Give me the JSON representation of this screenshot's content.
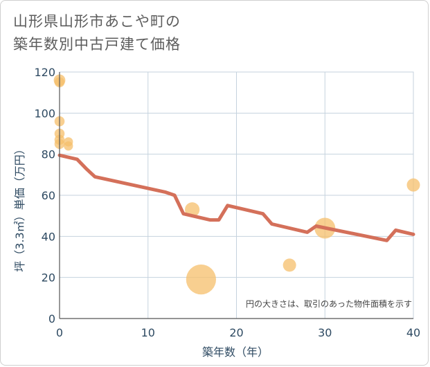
{
  "title_line1": "山形県山形市あこや町の",
  "title_line2": "築年数別中古戸建て価格",
  "chart_data": {
    "type": "scatter",
    "xlabel": "築年数（年）",
    "ylabel": "坪（3.3㎡）単価（万円）",
    "xlim": [
      0,
      40
    ],
    "ylim": [
      0,
      120
    ],
    "x_ticks": [
      0,
      10,
      20,
      30,
      40
    ],
    "y_ticks": [
      0,
      20,
      40,
      60,
      80,
      100,
      120
    ],
    "grid": true,
    "note": "円の大きさは、取引のあった物件面積を示す",
    "colors": {
      "bubble": "#f5bf6b",
      "trend": "#d4705a",
      "grid": "#c5d2de",
      "text": "#2e4a62"
    },
    "bubbles": [
      {
        "x": 0,
        "y": 116,
        "size": 2
      },
      {
        "x": 0,
        "y": 115,
        "size": 1.5
      },
      {
        "x": 0,
        "y": 96,
        "size": 1.5
      },
      {
        "x": 0,
        "y": 90,
        "size": 1.5
      },
      {
        "x": 0,
        "y": 87,
        "size": 1.5
      },
      {
        "x": 0,
        "y": 85,
        "size": 1.5
      },
      {
        "x": 1,
        "y": 86,
        "size": 1.2
      },
      {
        "x": 1,
        "y": 84,
        "size": 1.2
      },
      {
        "x": 15,
        "y": 53,
        "size": 3
      },
      {
        "x": 16,
        "y": 19,
        "size": 8
      },
      {
        "x": 26,
        "y": 26,
        "size": 2.5
      },
      {
        "x": 30,
        "y": 44,
        "size": 5
      },
      {
        "x": 40,
        "y": 65,
        "size": 2.5
      }
    ],
    "trend": [
      {
        "x": 0,
        "y": 79.5
      },
      {
        "x": 2,
        "y": 77.5
      },
      {
        "x": 3,
        "y": 73
      },
      {
        "x": 4,
        "y": 69
      },
      {
        "x": 12,
        "y": 61.5
      },
      {
        "x": 13,
        "y": 60
      },
      {
        "x": 14,
        "y": 51
      },
      {
        "x": 17,
        "y": 48
      },
      {
        "x": 18,
        "y": 48
      },
      {
        "x": 19,
        "y": 55
      },
      {
        "x": 23,
        "y": 51
      },
      {
        "x": 24,
        "y": 46
      },
      {
        "x": 28,
        "y": 42
      },
      {
        "x": 29,
        "y": 45
      },
      {
        "x": 37,
        "y": 38
      },
      {
        "x": 38,
        "y": 43
      },
      {
        "x": 40,
        "y": 41
      }
    ]
  }
}
